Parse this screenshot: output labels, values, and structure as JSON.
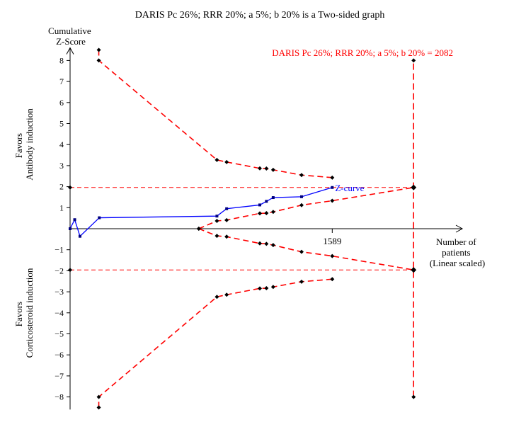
{
  "chart_data": {
    "type": "line",
    "title": "DARIS Pc 26%; RRR 20%; a 5%; b 20% is a Two-sided graph",
    "ylabel_lines": [
      "Cumulative",
      "Z-Score"
    ],
    "xlabel_lines": [
      "Number of",
      "patients",
      "(Linear scaled)"
    ],
    "favor_top_lines": [
      "Favors",
      "Antibody induction"
    ],
    "favor_bottom_lines": [
      "Favors",
      "Corticosteroid induction"
    ],
    "y_ticks": [
      8,
      7,
      6,
      5,
      4,
      3,
      2,
      1,
      -1,
      -2,
      -3,
      -4,
      -5,
      -6,
      -7,
      -8
    ],
    "y_tick_labels": [
      "8",
      "7",
      "6",
      "5",
      "4",
      "3",
      "2",
      "1",
      "−1",
      "−2",
      "−3",
      "−4",
      "−5",
      "−6",
      "−7",
      "−8"
    ],
    "ylim": [
      -8.6,
      8.6
    ],
    "xlim": [
      0,
      2360
    ],
    "x_tick": {
      "value": 1589,
      "label": "1589"
    },
    "required_information_size": 2082,
    "ris_label": "DARIS Pc 26%; RRR 20%; a 5%; b 20% = 2082",
    "conventional_boundary": 1.96,
    "z_curve_label": "Z-curve",
    "series": [
      {
        "name": "Z-curve",
        "color": "#0000ff",
        "x": [
          0,
          28,
          60,
          177,
          890,
          949,
          1150,
          1190,
          1231,
          1403,
          1589
        ],
        "y": [
          0,
          0.43,
          -0.36,
          0.52,
          0.6,
          0.95,
          1.13,
          1.3,
          1.48,
          1.52,
          1.96
        ]
      },
      {
        "name": "Upper efficacy boundary",
        "color": "#ff0000",
        "x": [
          174,
          174,
          890,
          949,
          1150,
          1190,
          1231,
          1403,
          1589
        ],
        "y": [
          8.5,
          8.0,
          3.27,
          3.17,
          2.87,
          2.86,
          2.8,
          2.55,
          2.43
        ]
      },
      {
        "name": "Lower efficacy boundary",
        "color": "#ff0000",
        "x": [
          174,
          174,
          890,
          949,
          1150,
          1190,
          1231,
          1403,
          1589
        ],
        "y": [
          -8.5,
          -8.0,
          -3.24,
          -3.14,
          -2.84,
          -2.83,
          -2.77,
          -2.52,
          -2.4
        ]
      },
      {
        "name": "Upper futility boundary",
        "color": "#ff0000",
        "x": [
          780,
          890,
          949,
          1150,
          1190,
          1231,
          1403,
          1589,
          2082
        ],
        "y": [
          0,
          0.37,
          0.41,
          0.73,
          0.74,
          0.8,
          1.12,
          1.33,
          1.96
        ]
      },
      {
        "name": "Lower futility boundary",
        "color": "#ff0000",
        "x": [
          780,
          890,
          949,
          1150,
          1190,
          1231,
          1403,
          1589,
          2082
        ],
        "y": [
          0,
          -0.34,
          -0.38,
          -0.7,
          -0.72,
          -0.78,
          -1.1,
          -1.3,
          -1.96
        ]
      }
    ],
    "ris_line": {
      "x": 2082,
      "y": [
        -8.0,
        8.0
      ],
      "color": "#ff0000"
    },
    "endpoint_markers": {
      "x": [
        0,
        0
      ],
      "y": [
        1.96,
        -1.96
      ]
    }
  }
}
